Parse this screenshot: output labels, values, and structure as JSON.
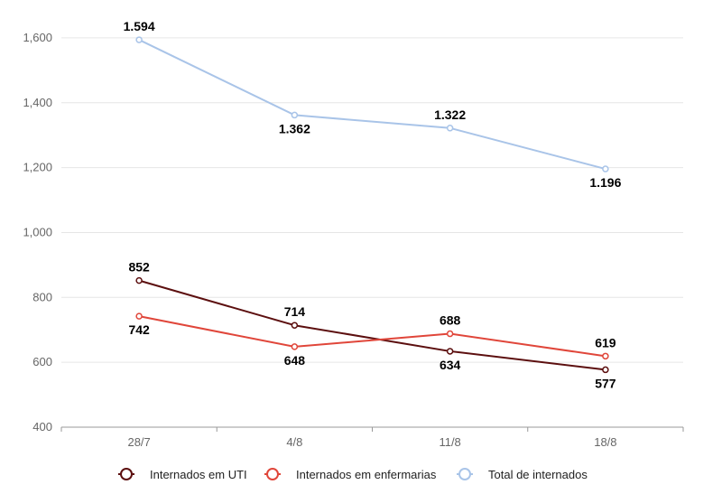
{
  "chart_data": {
    "type": "line",
    "categories": [
      "28/7",
      "4/8",
      "11/8",
      "18/8"
    ],
    "ylim": [
      400,
      1700
    ],
    "yticks": [
      400,
      600,
      800,
      1000,
      1200,
      1400,
      1600
    ],
    "ytick_labels": [
      "400",
      "600",
      "800",
      "1,000",
      "1,200",
      "1,400",
      "1,600"
    ],
    "grid": true,
    "legend_position": "bottom",
    "series": [
      {
        "name": "Internados em UTI",
        "color": "#5c0f0f",
        "values": [
          852,
          714,
          634,
          577
        ],
        "labels": [
          "852",
          "714",
          "634",
          "577"
        ],
        "label_pos": [
          "above",
          "above",
          "below",
          "below"
        ]
      },
      {
        "name": "Internados em enfermarias",
        "color": "#e0463a",
        "values": [
          742,
          648,
          688,
          619
        ],
        "labels": [
          "742",
          "648",
          "688",
          "619"
        ],
        "label_pos": [
          "below",
          "below",
          "above",
          "above"
        ]
      },
      {
        "name": "Total de internados",
        "color": "#a9c4e8",
        "values": [
          1594,
          1362,
          1322,
          1196
        ],
        "labels": [
          "1.594",
          "1.362",
          "1.322",
          "1.196"
        ],
        "label_pos": [
          "above",
          "below",
          "above",
          "below"
        ]
      }
    ]
  }
}
